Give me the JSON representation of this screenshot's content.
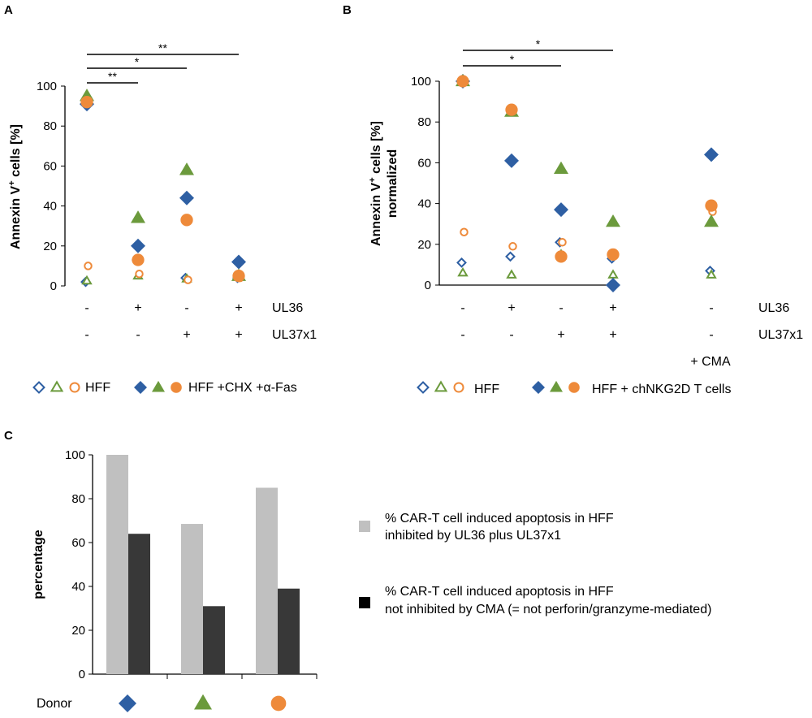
{
  "chart_data": [
    {
      "panel": "A",
      "type": "scatter",
      "ylabel_main": "Annexin V",
      "ylabel_sup": "+",
      "ylabel_rest": " cells [%]",
      "ylim": [
        0,
        100
      ],
      "yticks": [
        "0",
        "20",
        "40",
        "60",
        "80",
        "100"
      ],
      "row_labels": [
        "UL36",
        "UL37x1"
      ],
      "conditions": [
        {
          "ul36": "-",
          "ul37x1": "-"
        },
        {
          "ul36": "+",
          "ul37x1": "-"
        },
        {
          "ul36": "-",
          "ul37x1": "+"
        },
        {
          "ul36": "+",
          "ul37x1": "+"
        }
      ],
      "series": [
        {
          "name": "HFF donor 1",
          "marker": "diamond",
          "filled": false,
          "color": "#2e5fa3",
          "values": [
            2,
            13,
            4,
            4
          ]
        },
        {
          "name": "HFF donor 2",
          "marker": "triangle",
          "filled": false,
          "color": "#6b9a3c",
          "values": [
            2.5,
            5,
            3.5,
            5
          ]
        },
        {
          "name": "HFF donor 3",
          "marker": "circle",
          "filled": false,
          "color": "#ee8a3a",
          "values": [
            10,
            6,
            3,
            4
          ]
        },
        {
          "name": "HFF +CHX +a-Fas donor 1",
          "marker": "diamond",
          "filled": true,
          "color": "#2e5fa3",
          "values": [
            91,
            20,
            44,
            12
          ]
        },
        {
          "name": "HFF +CHX +a-Fas donor 2",
          "marker": "triangle",
          "filled": true,
          "color": "#6b9a3c",
          "values": [
            95,
            34,
            58,
            5
          ]
        },
        {
          "name": "HFF +CHX +a-Fas donor 3",
          "marker": "circle",
          "filled": true,
          "color": "#ee8a3a",
          "values": [
            92,
            13,
            33,
            5
          ]
        }
      ],
      "significance": [
        {
          "from": 0,
          "to": 1,
          "label": "**"
        },
        {
          "from": 0,
          "to": 2,
          "label": "*"
        },
        {
          "from": 0,
          "to": 3,
          "label": "**"
        }
      ],
      "legend": {
        "open_label": "HFF",
        "filled_label": "HFF +CHX +α-Fas"
      }
    },
    {
      "panel": "B",
      "type": "scatter",
      "ylabel_main": "Annexin V",
      "ylabel_sup": "+",
      "ylabel_rest": " cells [%]",
      "ylabel_line2": "normalized",
      "ylim": [
        0,
        100
      ],
      "yticks": [
        "0",
        "20",
        "40",
        "60",
        "80",
        "100"
      ],
      "row_labels": [
        "UL36",
        "UL37x1"
      ],
      "extra_label": "+ CMA",
      "conditions": [
        {
          "ul36": "-",
          "ul37x1": "-"
        },
        {
          "ul36": "+",
          "ul37x1": "-"
        },
        {
          "ul36": "-",
          "ul37x1": "+"
        },
        {
          "ul36": "+",
          "ul37x1": "+"
        },
        {
          "ul36": "-",
          "ul37x1": "-"
        }
      ],
      "series": [
        {
          "name": "HFF donor 1",
          "marker": "diamond",
          "filled": false,
          "color": "#2e5fa3",
          "values": [
            11,
            14,
            21,
            13,
            7
          ]
        },
        {
          "name": "HFF donor 2",
          "marker": "triangle",
          "filled": false,
          "color": "#6b9a3c",
          "values": [
            6,
            5,
            15,
            5,
            5
          ]
        },
        {
          "name": "HFF donor 3",
          "marker": "circle",
          "filled": false,
          "color": "#ee8a3a",
          "values": [
            26,
            19,
            21,
            15,
            36
          ]
        },
        {
          "name": "HFF + chNKG2D T cells donor 1",
          "marker": "diamond",
          "filled": true,
          "color": "#2e5fa3",
          "values": [
            100,
            61,
            37,
            0,
            64
          ]
        },
        {
          "name": "HFF + chNKG2D T cells donor 2",
          "marker": "triangle",
          "filled": true,
          "color": "#6b9a3c",
          "values": [
            100,
            85,
            57,
            31,
            31
          ]
        },
        {
          "name": "HFF + chNKG2D T cells donor 3",
          "marker": "circle",
          "filled": true,
          "color": "#ee8a3a",
          "values": [
            100,
            86,
            14,
            15,
            39
          ]
        }
      ],
      "significance": [
        {
          "from": 0,
          "to": 2,
          "label": "*"
        },
        {
          "from": 0,
          "to": 3,
          "label": "*"
        }
      ],
      "legend": {
        "open_label": "HFF",
        "filled_label": "HFF + chNKG2D T cells"
      }
    },
    {
      "panel": "C",
      "type": "bar",
      "ylabel": "percentage",
      "ylim": [
        0,
        100
      ],
      "yticks": [
        "0",
        "20",
        "40",
        "60",
        "80",
        "100"
      ],
      "xlabel": "Donor",
      "categories": [
        "donor-1",
        "donor-2",
        "donor-3"
      ],
      "category_markers": [
        {
          "marker": "diamond",
          "color": "#2e5fa3"
        },
        {
          "marker": "triangle",
          "color": "#6b9a3c"
        },
        {
          "marker": "circle",
          "color": "#ee8a3a"
        }
      ],
      "series": [
        {
          "name": "% CAR-T cell induced apoptosis in HFF inhibited by UL36 plus UL37x1",
          "color": "#c0c0c0",
          "values": [
            100,
            68.5,
            85
          ]
        },
        {
          "name": "% CAR-T cell induced apoptosis in HFF not inhibited by CMA (= not perforin/granzyme-mediated)",
          "color": "#383838",
          "values": [
            64,
            31,
            39
          ]
        }
      ],
      "legend": [
        {
          "line1": "% CAR-T cell induced apoptosis in HFF",
          "line2": "inhibited by UL36 plus UL37x1",
          "color": "#c0c0c0"
        },
        {
          "line1": "% CAR-T cell induced apoptosis in HFF",
          "line2": "not inhibited by CMA (= not perforin/granzyme-mediated)",
          "color": "#000000"
        }
      ]
    }
  ]
}
